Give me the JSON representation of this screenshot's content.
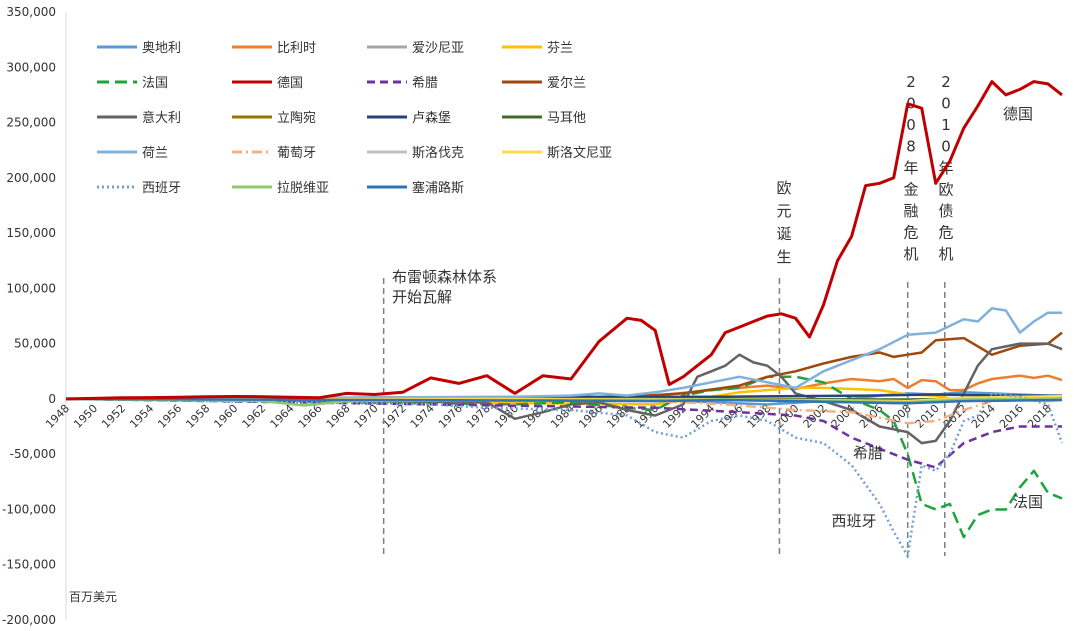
{
  "chart_data": {
    "type": "line",
    "unit_label": "百万美元",
    "ylim": [
      -200000,
      350000
    ],
    "y_ticks": [
      350000,
      300000,
      250000,
      200000,
      150000,
      100000,
      50000,
      0,
      -50000,
      -100000,
      -150000,
      -200000
    ],
    "y_tick_labels": [
      "350,000",
      "300,000",
      "250,000",
      "200,000",
      "150,000",
      "100,000",
      "50,000",
      "0",
      "-50,000",
      "-100,000",
      "-150,000",
      "-200,000"
    ],
    "x_range": [
      1948,
      2019
    ],
    "x_ticks": [
      "1948",
      "1950",
      "1952",
      "1954",
      "1956",
      "1958",
      "1960",
      "1962",
      "1964",
      "1966",
      "1968",
      "1970",
      "1972",
      "1974",
      "1976",
      "1978",
      "1980",
      "1982",
      "1984",
      "1986",
      "1988",
      "1990",
      "1992",
      "1994",
      "1996",
      "1998",
      "2000",
      "2002",
      "2004",
      "2006",
      "2008",
      "2010",
      "2012",
      "2014",
      "2016",
      "2018"
    ],
    "legend_position": "top-left",
    "series": [
      {
        "name": "奥地利",
        "color": "#5b9bd5",
        "dash": "solid",
        "x": [
          1948,
          1990,
          1994,
          1998,
          2002,
          2004,
          2006,
          2008,
          2010,
          2012,
          2014,
          2016,
          2018
        ],
        "y": [
          0,
          -1000,
          -3000,
          -5000,
          -2000,
          0,
          3000,
          5000,
          4000,
          6000,
          5000,
          4000,
          3000
        ]
      },
      {
        "name": "比利时",
        "color": "#ed7d31",
        "dash": "solid",
        "x": [
          1948,
          1986,
          1990,
          1994,
          1998,
          2000,
          2002,
          2004,
          2006,
          2007,
          2008,
          2009,
          2010,
          2011,
          2012,
          2013,
          2014,
          2016,
          2017,
          2018,
          2019
        ],
        "y": [
          0,
          2000,
          3000,
          8000,
          12000,
          9000,
          14000,
          18000,
          16000,
          18000,
          10000,
          17000,
          16000,
          8000,
          8000,
          14000,
          18000,
          21000,
          19000,
          21000,
          17000
        ]
      },
      {
        "name": "爱沙尼亚",
        "color": "#a5a5a5",
        "dash": "solid",
        "x": [
          1948,
          1995,
          2005,
          2008,
          2012,
          2019
        ],
        "y": [
          0,
          -200,
          -1500,
          -2500,
          -300,
          500
        ]
      },
      {
        "name": "芬兰",
        "color": "#ffc000",
        "dash": "solid",
        "x": [
          1948,
          1990,
          1994,
          1996,
          1998,
          2000,
          2002,
          2004,
          2006,
          2008,
          2010,
          2012,
          2014,
          2016,
          2018,
          2019
        ],
        "y": [
          0,
          -5000,
          2000,
          6000,
          8000,
          10000,
          10000,
          9000,
          8000,
          4000,
          3000,
          -2000,
          -1000,
          -1000,
          -2000,
          -1000
        ]
      },
      {
        "name": "法国",
        "color": "#1fa33f",
        "dash": "longdash",
        "x": [
          1948,
          1980,
          1984,
          1988,
          1990,
          1992,
          1994,
          1996,
          1998,
          2000,
          2002,
          2004,
          2006,
          2007,
          2008,
          2009,
          2010,
          2011,
          2012,
          2013,
          2014,
          2015,
          2016,
          2017,
          2018,
          2019
        ],
        "y": [
          0,
          -5000,
          -3000,
          -8000,
          -10000,
          3000,
          8000,
          10000,
          20000,
          20000,
          15000,
          0,
          -10000,
          -20000,
          -50000,
          -95000,
          -100000,
          -95000,
          -125000,
          -105000,
          -100000,
          -100000,
          -80000,
          -65000,
          -85000,
          -90000
        ]
      },
      {
        "name": "德国",
        "color": "#c00000",
        "dash": "solid",
        "x": [
          1948,
          1950,
          1952,
          1954,
          1956,
          1958,
          1960,
          1962,
          1964,
          1966,
          1968,
          1970,
          1972,
          1974,
          1976,
          1978,
          1980,
          1982,
          1984,
          1986,
          1988,
          1989,
          1990,
          1991,
          1992,
          1993,
          1994,
          1995,
          1996,
          1997,
          1998,
          1999,
          2000,
          2001,
          2002,
          2003,
          2004,
          2005,
          2006,
          2007,
          2008,
          2009,
          2010,
          2011,
          2012,
          2013,
          2014,
          2015,
          2016,
          2017,
          2018,
          2019
        ],
        "y": [
          0,
          500,
          1000,
          1200,
          1500,
          2000,
          2200,
          2000,
          1500,
          1000,
          5000,
          4000,
          6000,
          19000,
          14000,
          21000,
          5000,
          21000,
          18000,
          52000,
          73000,
          71000,
          62000,
          13000,
          20000,
          30000,
          40000,
          60000,
          65000,
          70000,
          75000,
          77000,
          73000,
          56000,
          85000,
          125000,
          147000,
          193000,
          195000,
          200000,
          267000,
          263000,
          195000,
          215000,
          245000,
          265000,
          287000,
          275000,
          280000,
          287000,
          285000,
          275000
        ]
      },
      {
        "name": "希腊",
        "color": "#7030a0",
        "dash": "dash",
        "x": [
          1948,
          1990,
          1996,
          2000,
          2002,
          2004,
          2006,
          2008,
          2010,
          2012,
          2014,
          2016,
          2018,
          2019
        ],
        "y": [
          0,
          -8000,
          -12000,
          -15000,
          -20000,
          -35000,
          -45000,
          -55000,
          -62000,
          -40000,
          -30000,
          -25000,
          -25000,
          -25000
        ]
      },
      {
        "name": "爱尔兰",
        "color": "#9e480e",
        "dash": "solid",
        "x": [
          1948,
          1988,
          1992,
          1996,
          1998,
          2000,
          2002,
          2004,
          2006,
          2007,
          2008,
          2009,
          2010,
          2012,
          2014,
          2016,
          2018,
          2019
        ],
        "y": [
          0,
          2000,
          5000,
          12000,
          20000,
          25000,
          32000,
          38000,
          42000,
          38000,
          40000,
          42000,
          53000,
          55000,
          40000,
          48000,
          50000,
          60000
        ]
      },
      {
        "name": "意大利",
        "color": "#636363",
        "dash": "solid",
        "x": [
          1948,
          1978,
          1980,
          1982,
          1984,
          1986,
          1988,
          1990,
          1992,
          1993,
          1994,
          1995,
          1996,
          1997,
          1998,
          1999,
          2000,
          2002,
          2004,
          2006,
          2008,
          2009,
          2010,
          2011,
          2012,
          2013,
          2014,
          2016,
          2018,
          2019
        ],
        "y": [
          0,
          -3000,
          -18000,
          -12000,
          -5000,
          -3000,
          -10000,
          -15000,
          -5000,
          20000,
          25000,
          30000,
          40000,
          33000,
          30000,
          20000,
          5000,
          -2000,
          -10000,
          -25000,
          -30000,
          -40000,
          -38000,
          -20000,
          5000,
          30000,
          45000,
          50000,
          50000,
          45000
        ]
      },
      {
        "name": "立陶宛",
        "color": "#997300",
        "dash": "solid",
        "x": [
          1948,
          1995,
          2008,
          2012,
          2019
        ],
        "y": [
          0,
          -500,
          -4000,
          -500,
          0
        ]
      },
      {
        "name": "卢森堡",
        "color": "#264478",
        "dash": "solid",
        "x": [
          1948,
          1995,
          2005,
          2010,
          2015,
          2019
        ],
        "y": [
          0,
          2000,
          3000,
          4000,
          3000,
          3000
        ]
      },
      {
        "name": "马耳他",
        "color": "#43682b",
        "dash": "solid",
        "x": [
          1948,
          1995,
          2008,
          2012,
          2019
        ],
        "y": [
          0,
          -200,
          -500,
          200,
          1000
        ]
      },
      {
        "name": "荷兰",
        "color": "#7fb1dd",
        "dash": "solid",
        "x": [
          1948,
          1980,
          1984,
          1986,
          1988,
          1990,
          1992,
          1994,
          1996,
          1998,
          2000,
          2002,
          2004,
          2006,
          2008,
          2010,
          2012,
          2013,
          2014,
          2015,
          2016,
          2017,
          2018,
          2019
        ],
        "y": [
          0,
          2000,
          3000,
          5000,
          3000,
          6000,
          10000,
          15000,
          20000,
          15000,
          10000,
          25000,
          35000,
          45000,
          58000,
          60000,
          72000,
          70000,
          82000,
          80000,
          60000,
          70000,
          78000,
          78000
        ]
      },
      {
        "name": "葡萄牙",
        "color": "#f4b183",
        "dash": "dashdot",
        "x": [
          1948,
          1990,
          1995,
          2000,
          2004,
          2008,
          2010,
          2012,
          2014,
          2016,
          2018,
          2019
        ],
        "y": [
          0,
          -2000,
          -5000,
          -10000,
          -12000,
          -22000,
          -20000,
          -10000,
          -2000,
          -1000,
          -1000,
          -1000
        ]
      },
      {
        "name": "斯洛伐克",
        "color": "#c0c0c0",
        "dash": "solid",
        "x": [
          1948,
          1995,
          2008,
          2012,
          2019
        ],
        "y": [
          0,
          -1000,
          -3000,
          -500,
          0
        ]
      },
      {
        "name": "斯洛文尼亚",
        "color": "#ffd84d",
        "dash": "solid",
        "x": [
          1948,
          1995,
          2008,
          2012,
          2019
        ],
        "y": [
          0,
          -300,
          -2000,
          1000,
          2500
        ]
      },
      {
        "name": "西班牙",
        "color": "#6fa0d8",
        "dash": "dot",
        "x": [
          1948,
          1974,
          1978,
          1984,
          1988,
          1990,
          1992,
          1994,
          1996,
          1998,
          2000,
          2002,
          2004,
          2006,
          2007,
          2008,
          2009,
          2010,
          2011,
          2012,
          2013,
          2014,
          2016,
          2018,
          2019
        ],
        "y": [
          0,
          -5000,
          -8000,
          -10000,
          -15000,
          -30000,
          -35000,
          -20000,
          -15000,
          -20000,
          -35000,
          -40000,
          -60000,
          -95000,
          -120000,
          -142000,
          -60000,
          -65000,
          -50000,
          -20000,
          -15000,
          5000,
          2000,
          -5000,
          -40000
        ]
      },
      {
        "name": "拉脱维亚",
        "color": "#8dca6d",
        "dash": "solid",
        "x": [
          1948,
          1962,
          1965,
          1968,
          1995,
          2008,
          2012,
          2019
        ],
        "y": [
          0,
          -2000,
          -6000,
          -2000,
          -500,
          -3000,
          -500,
          0
        ]
      },
      {
        "name": "塞浦路斯",
        "color": "#2e75b6",
        "dash": "solid",
        "x": [
          1948,
          1970,
          1990,
          1995,
          2008,
          2012,
          2019
        ],
        "y": [
          0,
          -1000,
          -2000,
          -1000,
          -4000,
          -2000,
          -1000
        ]
      }
    ],
    "annotations": [
      {
        "text": "布雷顿森林体系开始瓦解",
        "lines": [
          "布雷顿森林体系",
          "开始瓦解"
        ],
        "x": 1971
      },
      {
        "text": "欧元诞生",
        "lines": [
          "欧",
          "元",
          "诞",
          "生"
        ],
        "x": 1999
      },
      {
        "text": "2008年金融危机",
        "lines": [
          "2",
          "0",
          "0",
          "8",
          "年",
          "金",
          "融",
          "危",
          "机"
        ],
        "x": 2008
      },
      {
        "text": "2010年欧债危机",
        "lines": [
          "2",
          "0",
          "1",
          "0",
          "年",
          "欧",
          "债",
          "危",
          "机"
        ],
        "x": 2011
      }
    ],
    "series_labels": [
      {
        "text": "德国",
        "color": "#c00000"
      },
      {
        "text": "希腊",
        "color": "#7030a0"
      },
      {
        "text": "西班牙",
        "color": "#4e89c8"
      },
      {
        "text": "法国",
        "color": "#1fa33f"
      }
    ]
  }
}
